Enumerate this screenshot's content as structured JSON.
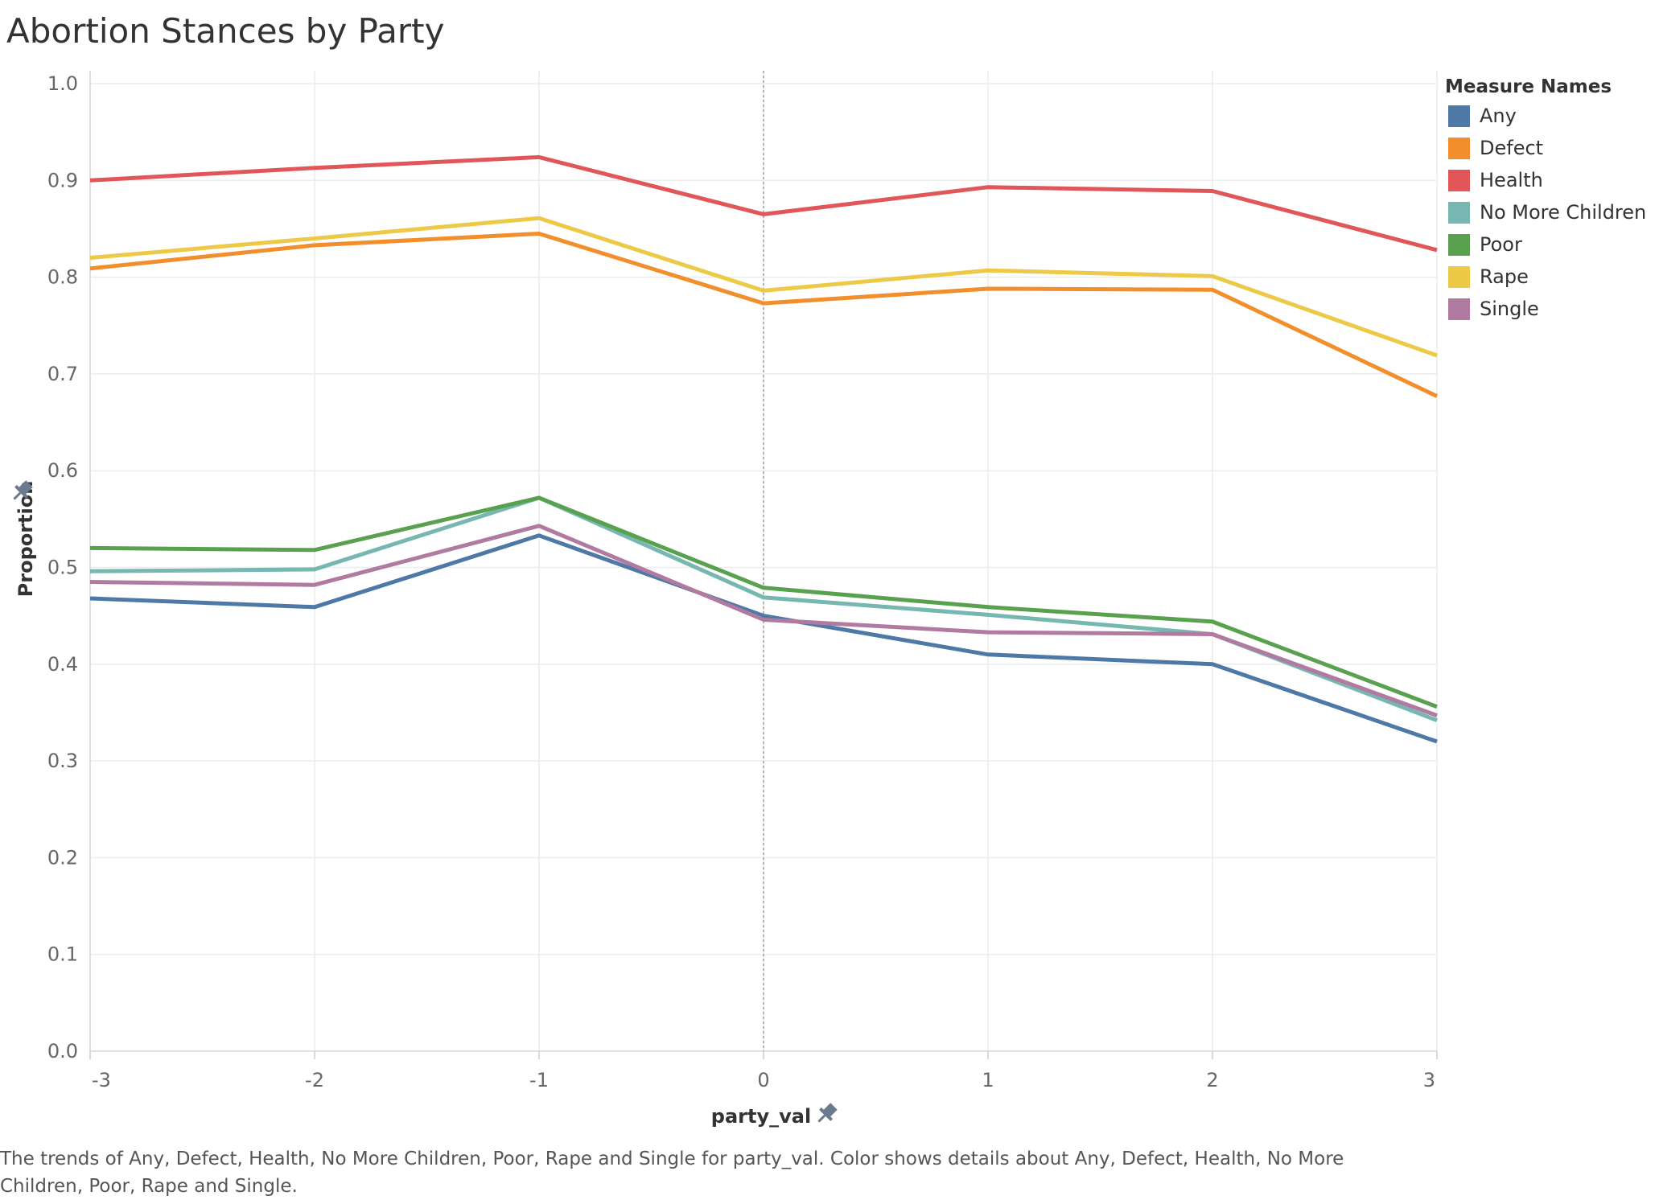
{
  "title": "Abortion Stances by Party",
  "legend": {
    "title": "Measure Names"
  },
  "caption": "The trends of Any, Defect, Health, No More Children, Poor, Rape and Single for party_val.  Color shows details about Any, Defect, Health, No More Children, Poor, Rape and Single.",
  "chart_data": {
    "type": "line",
    "title": "Abortion Stances by Party",
    "xlabel": "party_val",
    "ylabel": "Proportion",
    "x": [
      -3,
      -2,
      -1,
      0,
      1,
      2,
      3
    ],
    "xlim": [
      -3,
      3
    ],
    "ylim": [
      0.0,
      1.0
    ],
    "yticks": [
      "0.0",
      "0.1",
      "0.2",
      "0.3",
      "0.4",
      "0.5",
      "0.6",
      "0.7",
      "0.8",
      "0.9",
      "1.0"
    ],
    "xticks": [
      "-3",
      "-2",
      "-1",
      "0",
      "1",
      "2",
      "3"
    ],
    "grid": true,
    "reference_line_x": 0,
    "legend_position": "right",
    "series": [
      {
        "name": "Any",
        "color": "#4e79a7",
        "values": [
          0.468,
          0.459,
          0.533,
          0.45,
          0.41,
          0.4,
          0.32
        ]
      },
      {
        "name": "Defect",
        "color": "#f28e2b",
        "values": [
          0.809,
          0.833,
          0.845,
          0.773,
          0.788,
          0.787,
          0.677
        ]
      },
      {
        "name": "Health",
        "color": "#e15759",
        "values": [
          0.9,
          0.913,
          0.924,
          0.865,
          0.893,
          0.889,
          0.828
        ]
      },
      {
        "name": "No More Children",
        "color": "#76b7b2",
        "values": [
          0.496,
          0.498,
          0.572,
          0.469,
          0.451,
          0.431,
          0.342
        ]
      },
      {
        "name": "Poor",
        "color": "#59a14f",
        "values": [
          0.52,
          0.518,
          0.572,
          0.479,
          0.459,
          0.444,
          0.356
        ]
      },
      {
        "name": "Rape",
        "color": "#edc948",
        "values": [
          0.82,
          0.84,
          0.861,
          0.786,
          0.807,
          0.801,
          0.719
        ]
      },
      {
        "name": "Single",
        "color": "#b07aa1",
        "values": [
          0.485,
          0.482,
          0.543,
          0.446,
          0.433,
          0.431,
          0.347
        ]
      }
    ]
  }
}
